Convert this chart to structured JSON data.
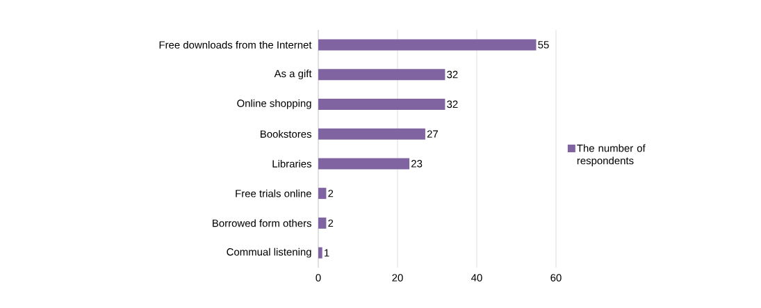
{
  "chart_data": {
    "type": "bar",
    "orientation": "horizontal",
    "categories": [
      "Free downloads from the Internet",
      "As a gift",
      "Online shopping",
      "Bookstores",
      "Libraries",
      "Free trials online",
      "Borrowed form others",
      "Commual listening"
    ],
    "series": [
      {
        "name": "The number of respondents",
        "color": "#8064a2",
        "values": [
          55,
          32,
          32,
          27,
          23,
          2,
          2,
          1
        ]
      }
    ],
    "xlim": [
      0,
      60
    ],
    "xticks": [
      0,
      20,
      40,
      60
    ],
    "grid": "x",
    "legend": "right",
    "data_labels": true
  }
}
